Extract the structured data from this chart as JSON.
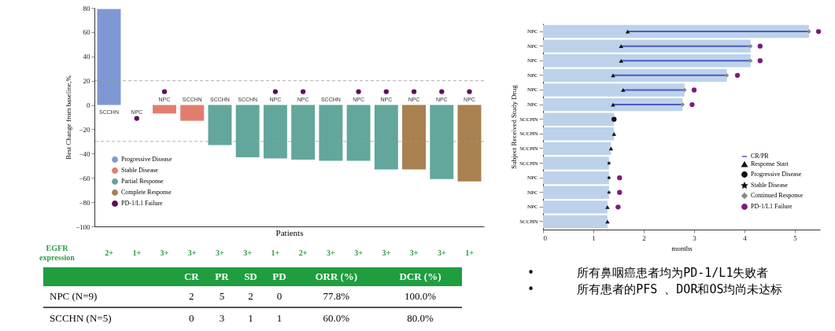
{
  "chart_data": [
    {
      "type": "bar",
      "categories": [
        "SCCHN",
        "NPC",
        "NPC",
        "SCCHN",
        "SCCHN",
        "SCCHN",
        "NPC",
        "NPC",
        "SCCHN",
        "NPC",
        "NPC",
        "NPC",
        "NPC",
        "NPC"
      ],
      "xlabel": "Patients",
      "ylabel": "Best Change from baseline,%",
      "ylim": [
        -100,
        80
      ],
      "yticks": [
        -100,
        -80,
        -60,
        -40,
        -20,
        0,
        20,
        40,
        60,
        80
      ],
      "grid": false,
      "legend": "bottom left",
      "tick_labels": "y",
      "series": [
        {
          "name": "Progressive Disease",
          "color": "#7f98d3",
          "values": [
            79,
            null,
            null,
            null,
            null,
            null,
            null,
            null,
            null,
            null,
            null,
            null,
            null,
            null
          ]
        },
        {
          "name": "Stable Disease",
          "color": "#e27d6c",
          "values": [
            null,
            0,
            -7,
            -13,
            null,
            null,
            null,
            null,
            null,
            null,
            null,
            null,
            null,
            null
          ]
        },
        {
          "name": "Partial Response",
          "color": "#62a69c",
          "values": [
            null,
            null,
            null,
            null,
            -33,
            -43,
            -44,
            -45,
            -46,
            -46,
            -53,
            null,
            -61,
            null
          ]
        },
        {
          "name": "Complete Response",
          "color": "#a9804f",
          "values": [
            null,
            null,
            null,
            null,
            null,
            null,
            null,
            null,
            null,
            null,
            null,
            -53,
            null,
            -63
          ]
        },
        {
          "name": "PD-1/L1 Failure",
          "type": "scatter",
          "marker": "circle",
          "color": "#5c0f5c",
          "values": [
            null,
            -11,
            11,
            null,
            null,
            null,
            11,
            11,
            null,
            11,
            11,
            11,
            11,
            11
          ]
        }
      ],
      "ref_lines": [
        {
          "axis": "y",
          "value": 20,
          "line_style": "dashed",
          "color": "#999999"
        },
        {
          "axis": "y",
          "value": -30,
          "line_style": "dashed",
          "color": "#999999"
        }
      ],
      "annotations": [
        "EGFR expression",
        "2+",
        "1+",
        "3+",
        "3+",
        "3+",
        "3+",
        "1+",
        "2+",
        "3+",
        "3+",
        "3+",
        "3+",
        "3+",
        "1+"
      ]
    },
    {
      "type": "other",
      "categories": [
        null,
        "CR",
        "PR",
        "SD",
        "PD",
        "ORR (%)",
        "DCR (%)"
      ],
      "y_categories": [
        "NPC (N=9)",
        "SCCHN (N=5)"
      ],
      "cell_labels": [
        [
          "2",
          "5",
          "2",
          "0",
          "77.8%",
          "100.0%"
        ],
        [
          "0",
          "3",
          "1",
          "1",
          "60.0%",
          "80.0%"
        ]
      ]
    },
    {
      "type": "bar",
      "orientation": "horizontal",
      "categories": [
        "NPC",
        "NPC",
        "NPC",
        "NPC",
        "NPC",
        "NPC",
        "SCCHN",
        "SCCHN",
        "SCCHN",
        "SCCHN",
        "NPC",
        "NPC",
        "NPC",
        "SCCHN"
      ],
      "xlabel": "months",
      "ylabel": "Subject Received Study Drug",
      "xlim": [
        0,
        5.5
      ],
      "xticks": [
        0,
        1,
        2,
        3,
        4,
        5
      ],
      "grid": false,
      "legend": "bottom right",
      "series": [
        {
          "color": "#bdd2ea",
          "values": [
            5.28,
            4.12,
            4.12,
            3.65,
            2.81,
            2.77,
            1.41,
            1.41,
            1.35,
            1.31,
            1.31,
            1.31,
            1.28,
            1.28
          ]
        },
        {
          "name": "CR/PR",
          "color": "#4b5bbf",
          "base": [
            1.68,
            1.55,
            1.55,
            1.39,
            1.59,
            1.39,
            null,
            null,
            null,
            null,
            null,
            null,
            null,
            null
          ],
          "values": [
            3.6,
            2.57,
            2.57,
            2.26,
            1.22,
            1.38,
            null,
            null,
            null,
            null,
            null,
            null,
            null,
            null
          ]
        },
        {
          "name": "Response Start",
          "type": "scatter",
          "marker": "triangle",
          "color": "#111111",
          "values": [
            1.68,
            1.55,
            1.55,
            1.39,
            1.59,
            1.39,
            null,
            1.41,
            1.35,
            null,
            null,
            null,
            1.28,
            1.28
          ]
        },
        {
          "name": "Progressive Disease",
          "type": "scatter",
          "marker": "circle",
          "color": "#111111",
          "values": [
            null,
            null,
            null,
            null,
            null,
            null,
            1.41,
            null,
            null,
            null,
            null,
            null,
            null,
            null
          ]
        },
        {
          "name": "Stable Disease",
          "type": "scatter",
          "marker": "star",
          "color": "#111111",
          "values": [
            null,
            null,
            null,
            null,
            null,
            null,
            null,
            null,
            null,
            1.31,
            1.31,
            1.31,
            null,
            null
          ]
        },
        {
          "name": "Continued Response",
          "type": "scatter",
          "marker": "diamond",
          "color": "#8a8a8a",
          "values": [
            5.28,
            4.12,
            4.12,
            3.65,
            2.81,
            2.77,
            null,
            null,
            null,
            null,
            null,
            null,
            null,
            null
          ]
        },
        {
          "name": "PD-1/L1 Failure",
          "type": "scatter",
          "marker": "circle",
          "color": "#7b1c7e",
          "values": [
            5.47,
            4.31,
            4.31,
            3.86,
            3.0,
            2.96,
            null,
            null,
            null,
            null,
            1.52,
            1.52,
            1.49,
            null
          ]
        }
      ]
    },
    {
      "type": "other",
      "annotations": [
        "•      所有鼻咽癌患者均为PD-1/L1失败者",
        "•      所有患者的PFS 、DOR和OS均尚未达标"
      ]
    }
  ]
}
